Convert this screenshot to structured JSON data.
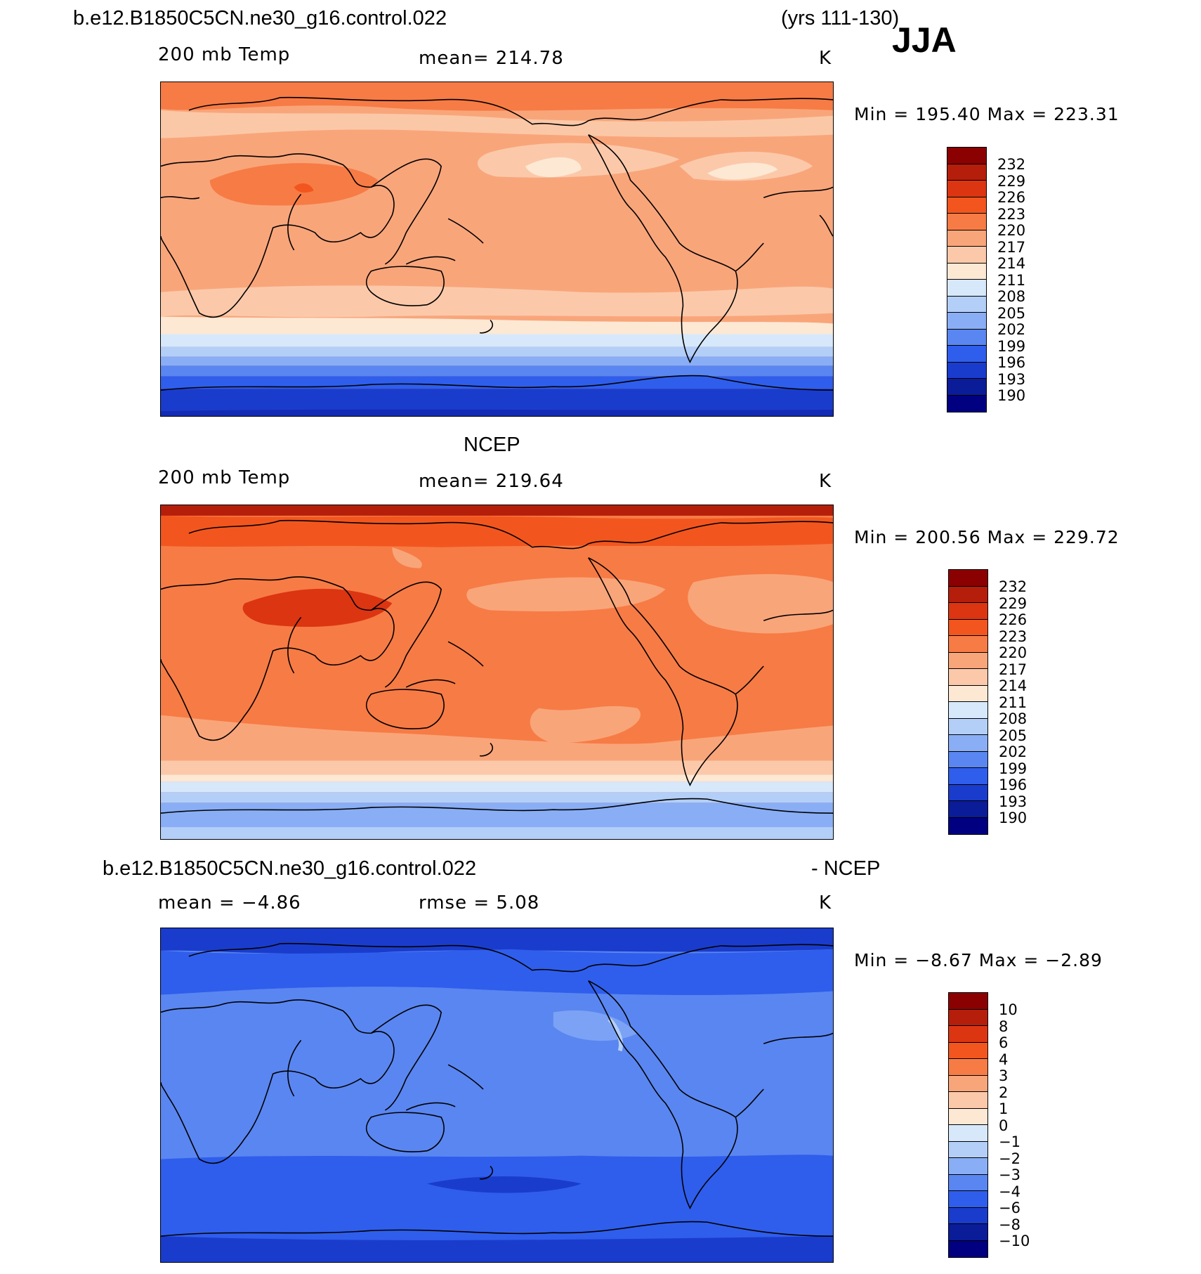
{
  "header": {
    "case_name": "b.e12.B1850C5CN.ne30_g16.control.022",
    "years": "(yrs 111-130)",
    "season": "JJA"
  },
  "panels": [
    {
      "title": "",
      "variable": "200 mb Temp",
      "stat": "mean=  214.78",
      "stat2": "",
      "units": "K",
      "minmax": "Min  =  195.40  Max  =  223.31",
      "legend": [
        "232",
        "229",
        "226",
        "223",
        "220",
        "217",
        "214",
        "211",
        "208",
        "205",
        "202",
        "199",
        "196",
        "193",
        "190"
      ],
      "colors": [
        "#8b0000",
        "#b51e0a",
        "#dc3512",
        "#f2561e",
        "#f77b45",
        "#f9a57a",
        "#fbc9aa",
        "#fde8d4",
        "#d7e8fb",
        "#b3cff8",
        "#89aef5",
        "#5a86f1",
        "#2f5eec",
        "#1a3ccc",
        "#0b1c99",
        "#000080"
      ]
    },
    {
      "title": "NCEP",
      "variable": "200 mb Temp",
      "stat": "mean=  219.64",
      "stat2": "",
      "units": "K",
      "minmax": "Min  =  200.56  Max  =  229.72",
      "legend": [
        "232",
        "229",
        "226",
        "223",
        "220",
        "217",
        "214",
        "211",
        "208",
        "205",
        "202",
        "199",
        "196",
        "193",
        "190"
      ],
      "colors": [
        "#8b0000",
        "#b51e0a",
        "#dc3512",
        "#f2561e",
        "#f77b45",
        "#f9a57a",
        "#fbc9aa",
        "#fde8d4",
        "#d7e8fb",
        "#b3cff8",
        "#89aef5",
        "#5a86f1",
        "#2f5eec",
        "#1a3ccc",
        "#0b1c99",
        "#000080"
      ]
    },
    {
      "title": "b.e12.B1850C5CN.ne30_g16.control.022",
      "title_right": "- NCEP",
      "variable": "mean =    −4.86",
      "stat": "rmse =     5.08",
      "units": "K",
      "minmax": "Min  =   −8.67  Max  =   −2.89",
      "legend": [
        "10",
        "8",
        "6",
        "4",
        "3",
        "2",
        "1",
        "0",
        "−1",
        "−2",
        "−3",
        "−4",
        "−6",
        "−8",
        "−10"
      ],
      "colors": [
        "#8b0000",
        "#b51e0a",
        "#dc3512",
        "#f2561e",
        "#f77b45",
        "#f9a57a",
        "#fbc9aa",
        "#fde8d4",
        "#d7e8fb",
        "#b3cff8",
        "#89aef5",
        "#5a86f1",
        "#2f5eec",
        "#1a3ccc",
        "#0b1c99",
        "#000080"
      ]
    }
  ]
}
